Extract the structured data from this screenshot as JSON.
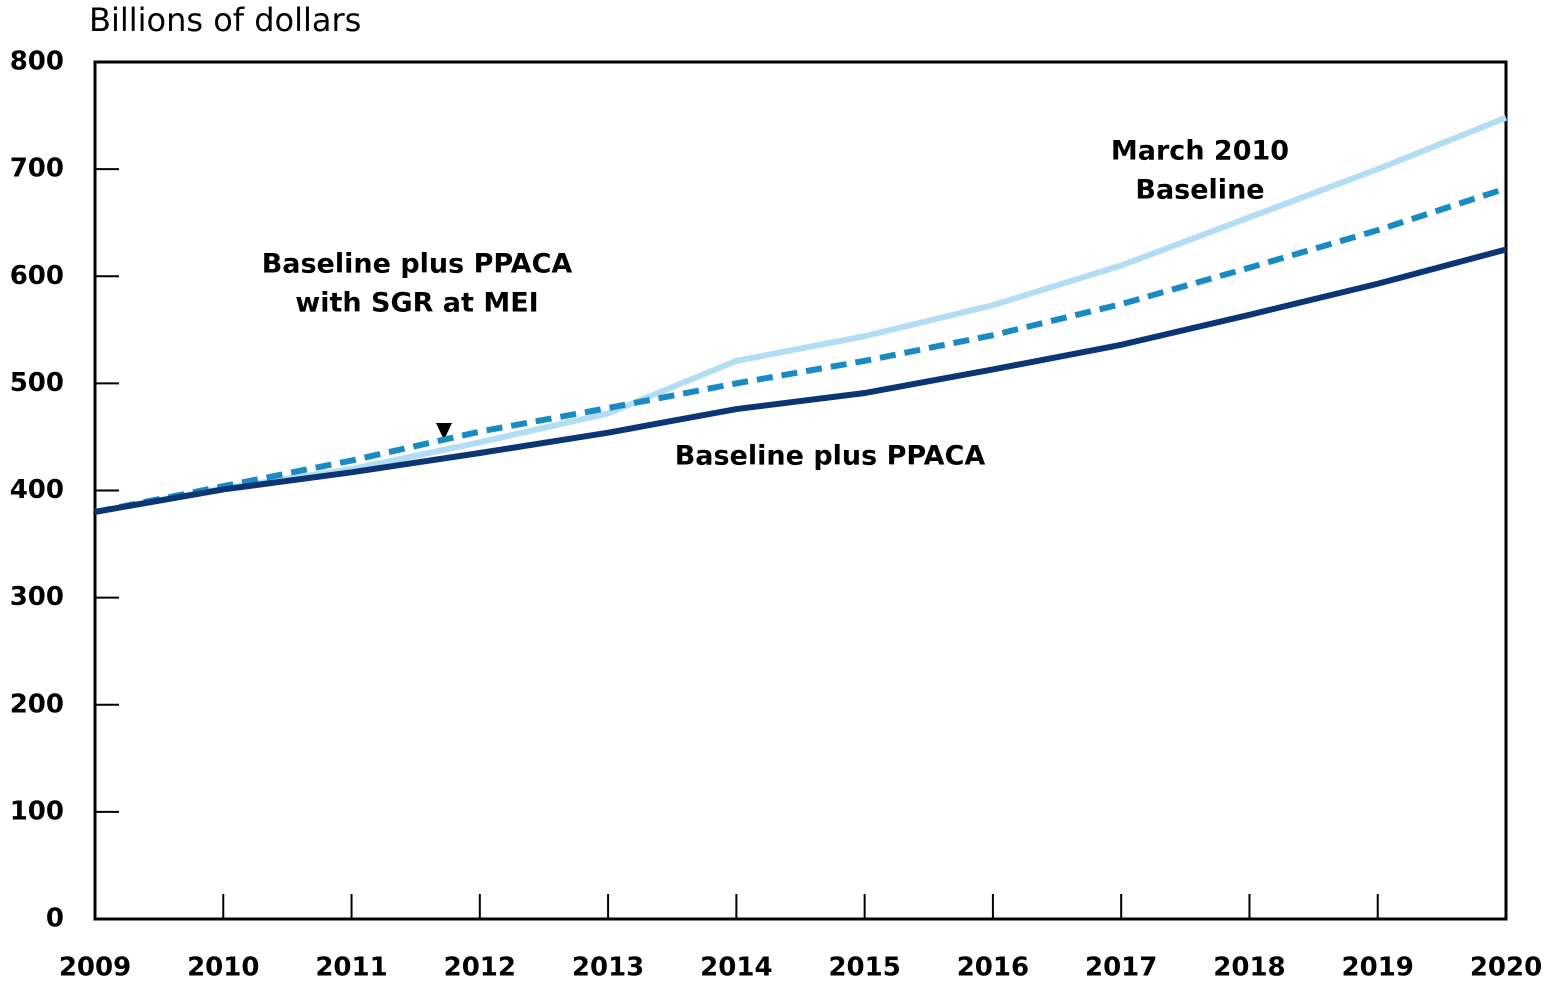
{
  "chart_data": {
    "type": "line",
    "y_axis_label": "Billions of dollars",
    "x": [
      2009,
      2010,
      2011,
      2012,
      2013,
      2014,
      2015,
      2016,
      2017,
      2018,
      2019,
      2020
    ],
    "series": [
      {
        "color": "#b3ddf5",
        "dash": false,
        "values": [
          380,
          402,
          420,
          445,
          472,
          521,
          544,
          573,
          610,
          655,
          700,
          748
        ]
      },
      {
        "color": "#1a8ac4",
        "dash": true,
        "values": [
          380,
          404,
          428,
          455,
          477,
          500,
          521,
          545,
          574,
          608,
          643,
          682
        ]
      },
      {
        "color": "#0b3574",
        "dash": false,
        "values": [
          380,
          401,
          417,
          435,
          454,
          476,
          491,
          513,
          536,
          564,
          593,
          625
        ]
      }
    ],
    "annotations": [
      [
        "March 2010",
        "Baseline"
      ],
      [
        "Baseline plus PPACA",
        "with SGR at MEI"
      ],
      [
        "Baseline plus PPACA"
      ]
    ],
    "xlim": [
      2009,
      2020
    ],
    "xticks": [
      2009,
      2010,
      2011,
      2012,
      2013,
      2014,
      2015,
      2016,
      2017,
      2018,
      2019,
      2020
    ],
    "ylim": [
      0,
      800
    ],
    "yticks": [
      0,
      100,
      200,
      300,
      400,
      500,
      600,
      700,
      800
    ]
  }
}
